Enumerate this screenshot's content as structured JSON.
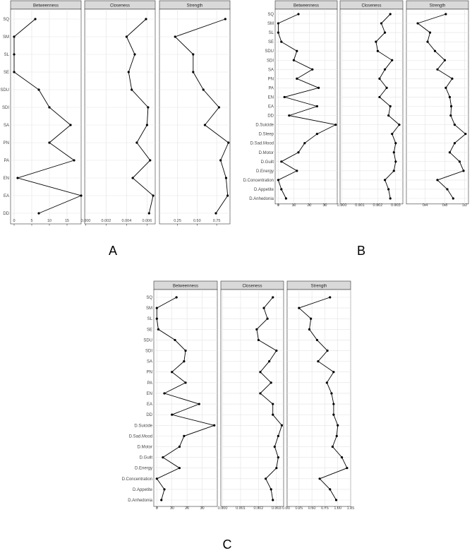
{
  "panel_labels": [
    "A",
    "B",
    "C"
  ],
  "chart_data": [
    {
      "type": "line",
      "panel": "A",
      "categories": [
        "SQ",
        "SM",
        "SL",
        "SE",
        "SDU",
        "SDI",
        "SA",
        "PN",
        "PA",
        "EN",
        "EA",
        "DD"
      ],
      "facets": [
        {
          "name": "Betweenness",
          "xlim": [
            -1,
            19
          ],
          "ticks": [
            0,
            5,
            10,
            15
          ],
          "tick_labels": [
            "0",
            "5",
            "10",
            "15"
          ],
          "values": [
            6,
            0,
            0,
            0,
            7,
            10,
            16,
            10,
            17,
            1,
            19,
            7
          ]
        },
        {
          "name": "Closeness",
          "xlim": [
            -0.0001,
            0.0068
          ],
          "ticks": [
            0,
            0.002,
            0.004,
            0.006
          ],
          "tick_labels": [
            "0.000",
            "0.002",
            "0.004",
            "0.006"
          ],
          "values": [
            0.0059,
            0.004,
            0.0048,
            0.0042,
            0.0045,
            0.0061,
            0.006,
            0.005,
            0.0063,
            0.0046,
            0.0066,
            0.0062
          ]
        },
        {
          "name": "Strength",
          "xlim": [
            0.02,
            0.92
          ],
          "ticks": [
            0.25,
            0.5,
            0.75
          ],
          "tick_labels": [
            "0.25",
            "0.50",
            "0.75"
          ],
          "values": [
            0.86,
            0.22,
            0.45,
            0.45,
            0.58,
            0.78,
            0.6,
            0.9,
            0.8,
            0.87,
            0.89,
            0.74
          ]
        }
      ],
      "grid": true
    },
    {
      "type": "line",
      "panel": "B",
      "categories": [
        "SQ",
        "SM",
        "SL",
        "SE",
        "SDU",
        "SDI",
        "SA",
        "PN",
        "PA",
        "EN",
        "EA",
        "DD",
        "D.Suicide",
        "D.Sleep",
        "D.Sad.Mood",
        "D.Motor",
        "D.Guilt",
        "D.Energy",
        "D.Concentration",
        "D.Appetite",
        "D.Anhedonia"
      ],
      "facets": [
        {
          "name": "Betweenness",
          "xlim": [
            -2,
            38
          ],
          "ticks": [
            0,
            10,
            20,
            30
          ],
          "tick_labels": [
            "0",
            "10",
            "20",
            "30"
          ],
          "values": [
            13,
            0,
            0,
            2,
            12,
            10,
            22,
            12,
            26,
            4,
            25,
            7,
            37,
            25,
            17,
            13,
            2,
            12,
            0,
            2,
            5
          ]
        },
        {
          "name": "Closeness",
          "xlim": [
            -0.0001,
            0.0034
          ],
          "ticks": [
            0,
            0.001,
            0.002,
            0.003
          ],
          "tick_labels": [
            "0.000",
            "0.001",
            "0.002",
            "0.003"
          ],
          "values": [
            0.0027,
            0.0022,
            0.0024,
            0.0019,
            0.002,
            0.0028,
            0.0024,
            0.0021,
            0.0025,
            0.0021,
            0.0027,
            0.0026,
            0.0032,
            0.0028,
            0.003,
            0.0029,
            0.003,
            0.0029,
            0.0024,
            0.0026,
            0.0027
          ]
        },
        {
          "name": "Strength",
          "xlim": [
            0.02,
            1.28
          ],
          "ticks": [
            0.4,
            0.8,
            1.2
          ],
          "tick_labels": [
            "0.4",
            "0.8",
            "1.2"
          ],
          "values": [
            0.82,
            0.25,
            0.5,
            0.45,
            0.6,
            0.8,
            0.65,
            0.95,
            0.82,
            0.9,
            0.93,
            0.92,
            1.0,
            1.22,
            1.0,
            0.9,
            1.1,
            1.18,
            0.65,
            0.85,
            0.97
          ]
        }
      ],
      "grid": true
    },
    {
      "type": "line",
      "panel": "C",
      "categories": [
        "SQ",
        "SM",
        "SL",
        "SE",
        "SDU",
        "SDI",
        "SA",
        "PN",
        "PA",
        "EN",
        "EA",
        "DD",
        "D.Suicide",
        "D.Sad.Mood",
        "D.Motor",
        "D.Guilt",
        "D.Energy",
        "D.Concentration",
        "D.Appetite",
        "D.Anhedonia"
      ],
      "facets": [
        {
          "name": "Betweenness",
          "xlim": [
            -2,
            40
          ],
          "ticks": [
            0,
            10,
            20,
            30
          ],
          "tick_labels": [
            "0",
            "10",
            "20",
            "30"
          ],
          "values": [
            13,
            0,
            0,
            1,
            12,
            19,
            18,
            10,
            19,
            5,
            28,
            10,
            38,
            18,
            15,
            4,
            15,
            0,
            5,
            3
          ]
        },
        {
          "name": "Closeness",
          "xlim": [
            -0.0001,
            0.0034
          ],
          "ticks": [
            0,
            0.001,
            0.002,
            0.003
          ],
          "tick_labels": [
            "0.000",
            "0.001",
            "0.002",
            "0.003"
          ],
          "values": [
            0.0028,
            0.0023,
            0.0025,
            0.0019,
            0.002,
            0.003,
            0.0026,
            0.0021,
            0.0027,
            0.0021,
            0.0028,
            0.0028,
            0.0033,
            0.0031,
            0.0029,
            0.0031,
            0.003,
            0.0024,
            0.0027,
            0.0028
          ]
        },
        {
          "name": "Strength",
          "xlim": [
            0.02,
            1.25
          ],
          "ticks": [
            0,
            0.25,
            0.5,
            0.75,
            1,
            1.25
          ],
          "tick_labels": [
            "0.00",
            "0.25",
            "0.50",
            "0.75",
            "1.00",
            "1.25"
          ],
          "values": [
            0.85,
            0.25,
            0.48,
            0.45,
            0.6,
            0.8,
            0.62,
            0.92,
            0.79,
            0.88,
            0.92,
            0.92,
            1.0,
            0.98,
            0.9,
            1.08,
            1.18,
            0.65,
            0.85,
            0.97
          ]
        }
      ],
      "grid": true
    }
  ]
}
